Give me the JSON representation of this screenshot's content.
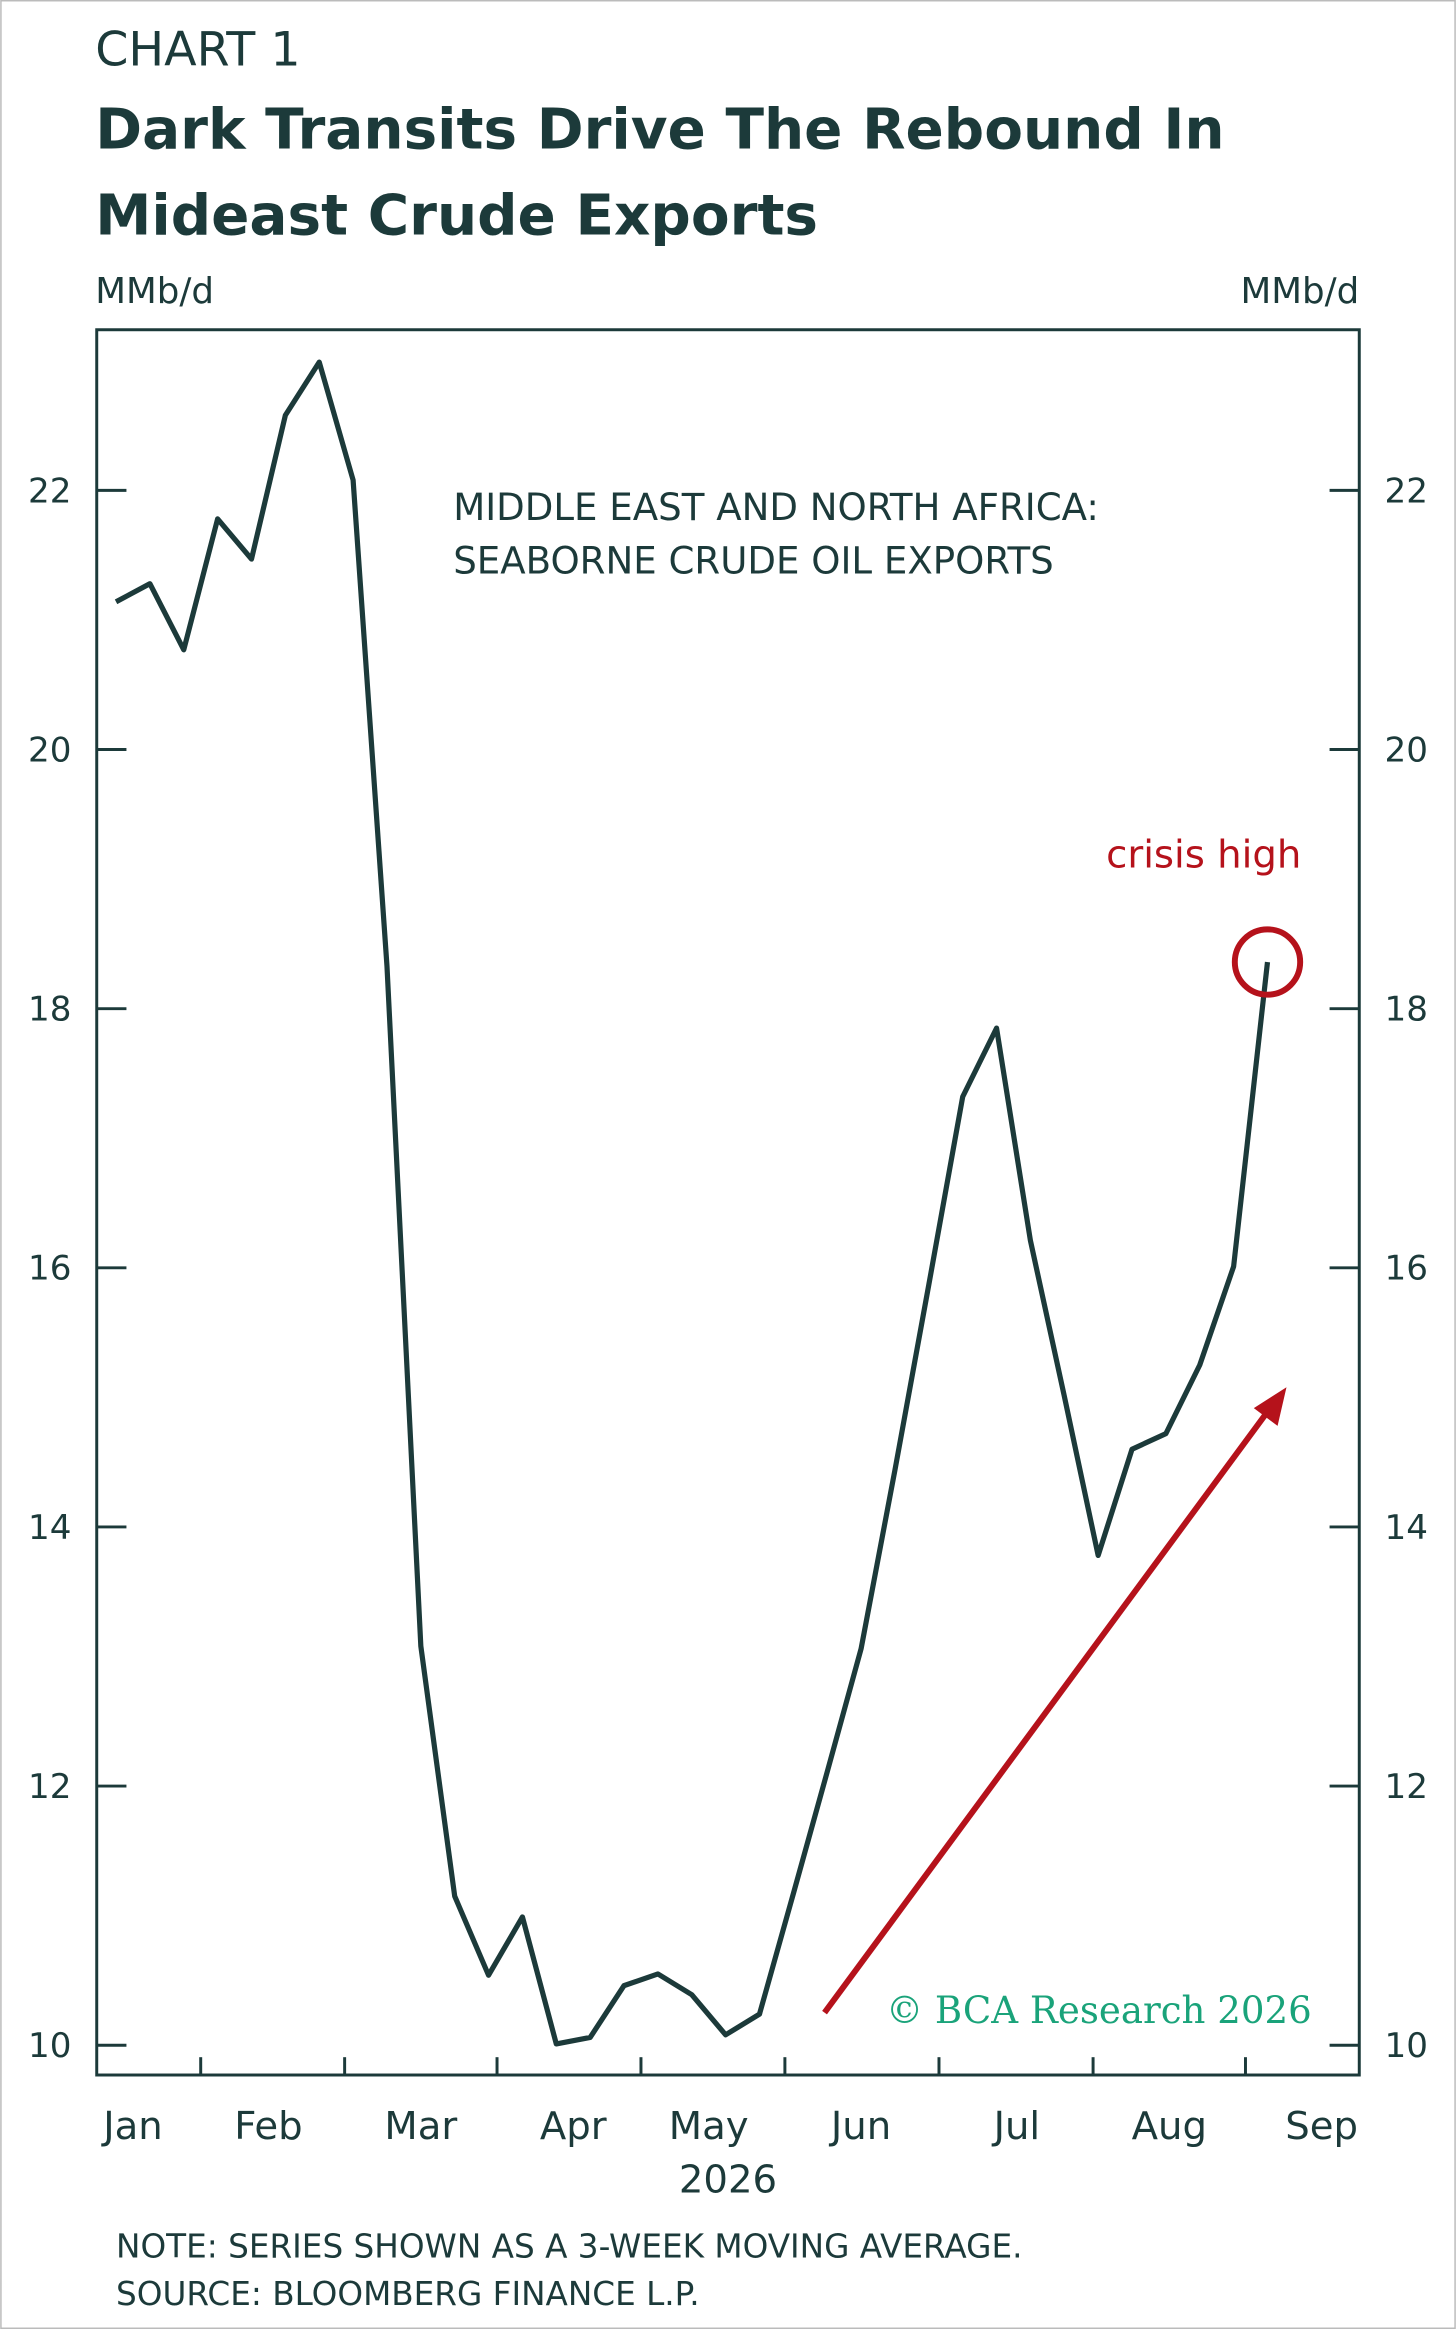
{
  "chart_data": {
    "type": "line",
    "label": "CHART 1",
    "title": "Dark Transits Drive The Rebound In Mideast Crude Exports",
    "ylabel": "MMb/d",
    "y2label": "MMb/d",
    "xlabel": "2026",
    "subtitle": "MIDDLE EAST AND NORTH AFRICA: SEABORNE CRUDE OIL EXPORTS",
    "annotation": "crisis high",
    "watermark": "© BCA Research 2026",
    "notes": [
      "NOTE: SERIES SHOWN AS A 3-WEEK MOVING AVERAGE.",
      "SOURCE: BLOOMBERG FINANCE L.P."
    ],
    "x": [
      0,
      1,
      2,
      3,
      4,
      5,
      6,
      7,
      8,
      9,
      10,
      11,
      12,
      13,
      14,
      15,
      16,
      17,
      18,
      19,
      20,
      21,
      22,
      23,
      24,
      25,
      26,
      27,
      28,
      29,
      30,
      31,
      32,
      33,
      34
    ],
    "series": [
      {
        "color": "#1c3a3a",
        "values": [
          21.14,
          21.28,
          20.77,
          21.78,
          21.47,
          22.58,
          22.99,
          22.08,
          18.33,
          13.08,
          11.15,
          10.54,
          10.99,
          10.01,
          10.06,
          10.46,
          10.55,
          10.39,
          10.08,
          10.24,
          11.17,
          12.11,
          13.06,
          14.44,
          15.87,
          17.32,
          17.85,
          16.21,
          15.01,
          13.78,
          14.6,
          14.72,
          15.25,
          16.01,
          18.36
        ]
      }
    ],
    "xlim": [
      -0.57,
      36.71
    ],
    "xticks": [
      {
        "value": 0.5,
        "label": "Jan"
      },
      {
        "value": 4.5,
        "label": "Feb"
      },
      {
        "value": 9,
        "label": "Mar"
      },
      {
        "value": 13.5,
        "label": "Apr"
      },
      {
        "value": 17.5,
        "label": "May"
      },
      {
        "value": 22,
        "label": "Jun"
      },
      {
        "value": 26.6,
        "label": "Jul"
      },
      {
        "value": 31.1,
        "label": "Aug"
      },
      {
        "value": 35.6,
        "label": "Sep"
      }
    ],
    "ylim": [
      9.77,
      23.24
    ],
    "yticks": [
      10,
      12,
      14,
      16,
      18,
      20,
      22
    ],
    "highlight_color": "#b5121b",
    "watermark_color": "#1aa37a"
  }
}
